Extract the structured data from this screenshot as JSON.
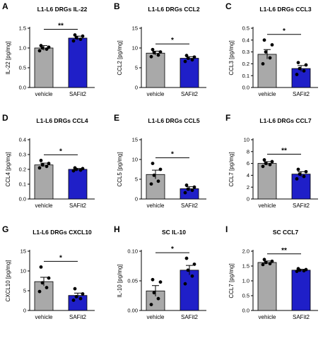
{
  "figure": {
    "colors": {
      "vehicle": "#a9a9a9",
      "SAFit2": "#1f1fc8",
      "stroke": "#000000"
    }
  },
  "chart_data": [
    {
      "type": "bar",
      "letter": "A",
      "title": "L1-L6 DRGs IL-22",
      "ylabel": "IL-22 [pg/mg]",
      "ylim": [
        0,
        1.5
      ],
      "yticks": [
        "0.0",
        "0.5",
        "1.0",
        "1.5"
      ],
      "categories": [
        "vehicle",
        "SAFit2"
      ],
      "values": [
        1.0,
        1.25
      ],
      "errors": [
        0.06,
        0.05
      ],
      "points": [
        [
          0.93,
          0.97,
          1.0,
          1.02,
          1.06
        ],
        [
          1.18,
          1.22,
          1.26,
          1.3,
          1.33
        ]
      ],
      "significance": "**"
    },
    {
      "type": "bar",
      "letter": "B",
      "title": "L1-L6 DRGs CCL2",
      "ylabel": "CCL2 [pg/mg]",
      "ylim": [
        0,
        15
      ],
      "yticks": [
        "0",
        "5",
        "10",
        "15"
      ],
      "categories": [
        "vehicle",
        "SAFit2"
      ],
      "values": [
        8.7,
        7.4
      ],
      "errors": [
        0.5,
        0.4
      ],
      "points": [
        [
          7.8,
          8.2,
          8.8,
          9.0,
          9.6
        ],
        [
          6.6,
          7.0,
          7.4,
          7.7,
          8.1
        ]
      ],
      "significance": "*"
    },
    {
      "type": "bar",
      "letter": "C",
      "title": "L1-L6 DRGs CCL3",
      "ylabel": "CCL3 [pg/mg]",
      "ylim": [
        0,
        0.5
      ],
      "yticks": [
        "0.0",
        "0.1",
        "0.2",
        "0.3",
        "0.4",
        "0.5"
      ],
      "categories": [
        "vehicle",
        "SAFit2"
      ],
      "values": [
        0.28,
        0.16
      ],
      "errors": [
        0.04,
        0.025
      ],
      "points": [
        [
          0.2,
          0.25,
          0.3,
          0.36,
          0.4
        ],
        [
          0.11,
          0.14,
          0.16,
          0.19,
          0.21
        ]
      ],
      "significance": "*"
    },
    {
      "type": "bar",
      "letter": "D",
      "title": "L1-L6 DRGs CCL4",
      "ylabel": "CCL4 [pg/mg]",
      "ylim": [
        0,
        0.4
      ],
      "yticks": [
        "0.0",
        "0.1",
        "0.2",
        "0.3",
        "0.4"
      ],
      "categories": [
        "vehicle",
        "SAFit2"
      ],
      "values": [
        0.23,
        0.2
      ],
      "errors": [
        0.012,
        0.006
      ],
      "points": [
        [
          0.21,
          0.22,
          0.23,
          0.24,
          0.26
        ],
        [
          0.19,
          0.195,
          0.2,
          0.205,
          0.21
        ]
      ],
      "significance": "*"
    },
    {
      "type": "bar",
      "letter": "E",
      "title": "L1-L6 DRGs CCL5",
      "ylabel": "CCL5 [pg/mg]",
      "ylim": [
        0,
        15
      ],
      "yticks": [
        "0",
        "5",
        "10",
        "15"
      ],
      "categories": [
        "vehicle",
        "SAFit2"
      ],
      "values": [
        6.2,
        2.6
      ],
      "errors": [
        1.1,
        0.5
      ],
      "points": [
        [
          3.8,
          4.5,
          6.0,
          7.5,
          9.0
        ],
        [
          1.6,
          2.2,
          2.5,
          3.0,
          3.5
        ]
      ],
      "significance": "*"
    },
    {
      "type": "bar",
      "letter": "F",
      "title": "L1-L6 DRGs CCL7",
      "ylabel": "CCL7 [pg/mg]",
      "ylim": [
        0,
        10
      ],
      "yticks": [
        "0",
        "2",
        "4",
        "6",
        "8",
        "10"
      ],
      "categories": [
        "vehicle",
        "SAFit2"
      ],
      "values": [
        6.0,
        4.2
      ],
      "errors": [
        0.3,
        0.4
      ],
      "points": [
        [
          5.5,
          5.8,
          6.0,
          6.3,
          6.6
        ],
        [
          3.4,
          3.8,
          4.2,
          4.6,
          5.0
        ]
      ],
      "significance": "**"
    },
    {
      "type": "bar",
      "letter": "G",
      "title": "L1-L6 DRGs CXCL10",
      "ylabel": "CXCL10 [pg/mg]",
      "ylim": [
        0,
        15
      ],
      "yticks": [
        "0",
        "5",
        "10",
        "15"
      ],
      "categories": [
        "vehicle",
        "SAFit2"
      ],
      "values": [
        7.3,
        3.8
      ],
      "errors": [
        1.1,
        0.6
      ],
      "points": [
        [
          4.8,
          5.8,
          7.0,
          8.2,
          11.0
        ],
        [
          2.6,
          3.0,
          3.5,
          4.2,
          5.5
        ]
      ],
      "significance": "*"
    },
    {
      "type": "bar",
      "letter": "H",
      "title": "SC IL-10",
      "ylabel": "IL-10 [pg/mg]",
      "ylim": [
        0,
        0.1
      ],
      "yticks": [
        "0.00",
        "0.05",
        "0.10"
      ],
      "categories": [
        "vehicle",
        "SAFit2"
      ],
      "values": [
        0.033,
        0.068
      ],
      "errors": [
        0.009,
        0.008
      ],
      "points": [
        [
          0.01,
          0.02,
          0.03,
          0.048,
          0.052
        ],
        [
          0.045,
          0.058,
          0.068,
          0.078,
          0.088
        ]
      ],
      "significance": "*"
    },
    {
      "type": "bar",
      "letter": "I",
      "title": "SC CCL7",
      "ylabel": "CCL7 [pg/mg]",
      "ylim": [
        0,
        2.0
      ],
      "yticks": [
        "0.0",
        "0.5",
        "1.0",
        "1.5",
        "2.0"
      ],
      "categories": [
        "vehicle",
        "SAFit2"
      ],
      "values": [
        1.62,
        1.36
      ],
      "errors": [
        0.05,
        0.03
      ],
      "points": [
        [
          1.55,
          1.58,
          1.62,
          1.66,
          1.72
        ],
        [
          1.32,
          1.34,
          1.36,
          1.38,
          1.41
        ]
      ],
      "significance": "**"
    }
  ]
}
